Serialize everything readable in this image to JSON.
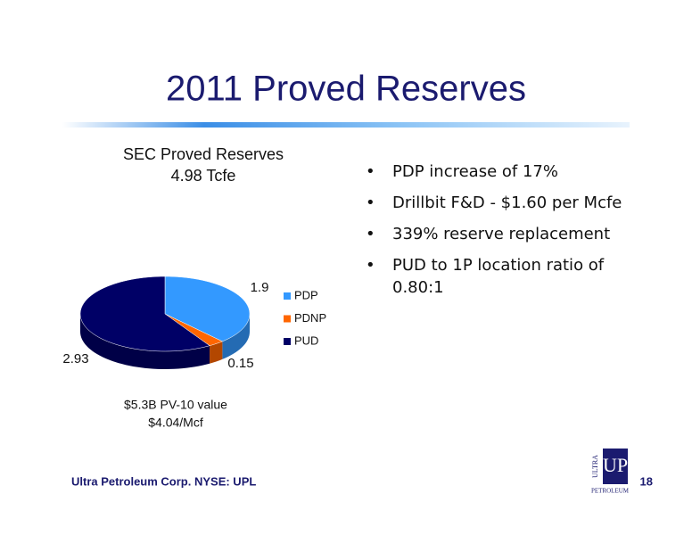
{
  "title": "2011 Proved Reserves",
  "chart_data": {
    "type": "pie",
    "title": "SEC Proved Reserves",
    "subtitle": "4.98 Tcfe",
    "categories": [
      "PDP",
      "PDNP",
      "PUD"
    ],
    "values": [
      1.9,
      0.15,
      2.93
    ],
    "colors": [
      "#3399ff",
      "#ff6600",
      "#000066"
    ],
    "legend": "right",
    "annotations": [
      "$5.3B PV-10 value",
      "$4.04/Mcf"
    ]
  },
  "bullets": [
    "PDP increase of 17%",
    "Drillbit F&D - $1.60 per Mcfe",
    "339% reserve replacement",
    "PUD to 1P location ratio of 0.80:1"
  ],
  "footer": "Ultra Petroleum Corp. NYSE: UPL",
  "page_number": "18",
  "logo": {
    "top": "ULTRA",
    "main": "UP",
    "bottom": "PETROLEUM"
  }
}
